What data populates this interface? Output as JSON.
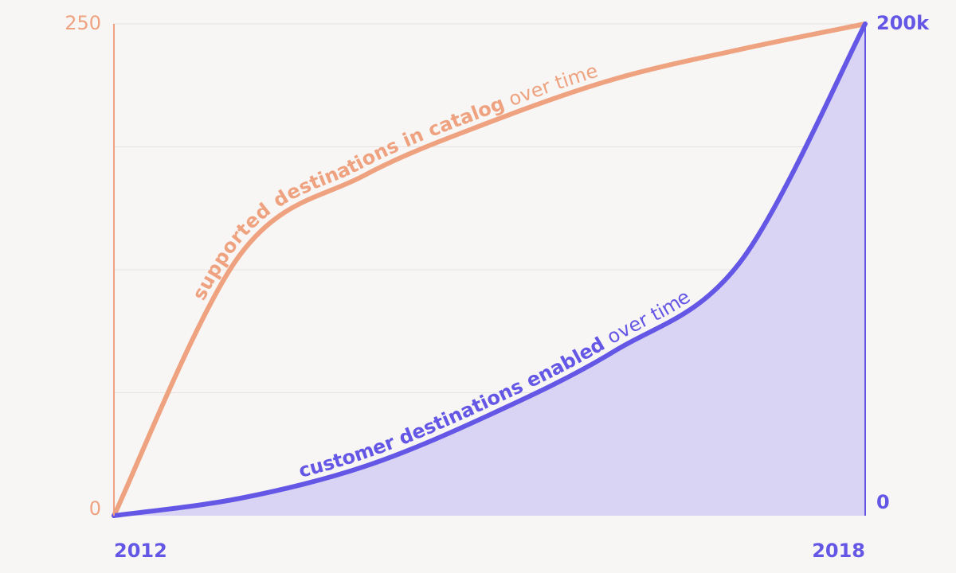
{
  "chart_data": {
    "type": "line",
    "x": [
      2012,
      2013,
      2014,
      2015,
      2016,
      2017,
      2018
    ],
    "xlim": [
      2012,
      2018
    ],
    "xticks": [
      2012,
      2018
    ],
    "ylim": [
      0,
      250
    ],
    "yticks": [
      0,
      250
    ],
    "y2lim": [
      0,
      200000
    ],
    "y2ticks": [
      0,
      {
        "value": 200000,
        "label": "200k"
      }
    ],
    "grid": true,
    "series": [
      {
        "name": "supported destinations in catalog",
        "label_suffix": "over time",
        "color": "#eea27f",
        "values": [
          0,
          132,
          173,
          200,
          222,
          237,
          250
        ]
      },
      {
        "name": "customer destinations enabled",
        "label_suffix": "over time",
        "color": "#6457e6",
        "axis": "y2",
        "fill": "#d9d4f3",
        "values": [
          0,
          7000,
          20000,
          41000,
          67000,
          103000,
          200000
        ]
      }
    ]
  }
}
